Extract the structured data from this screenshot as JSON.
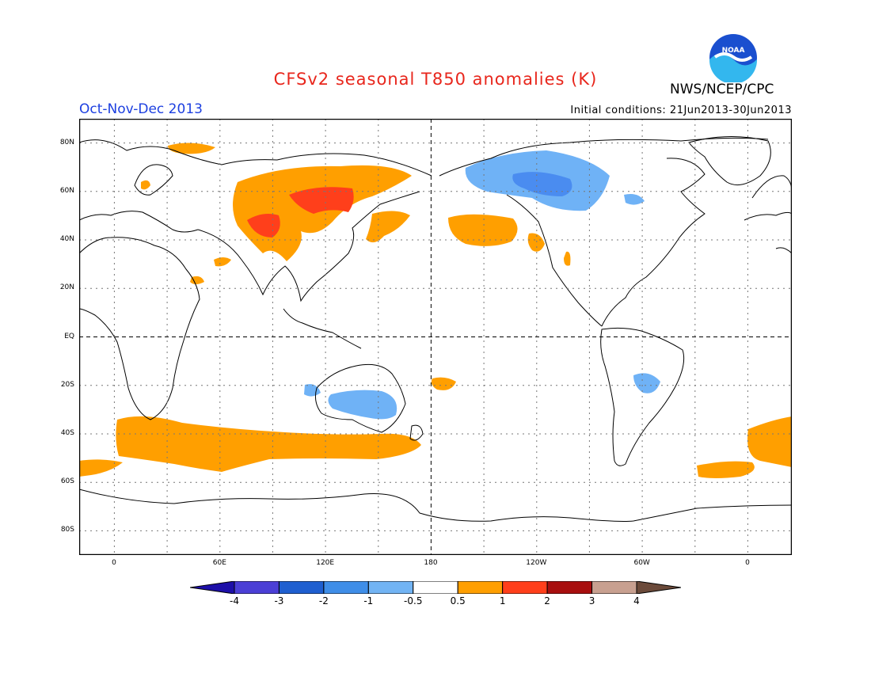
{
  "header": {
    "title": "CFSv2 seasonal T850 anomalies (K)",
    "agency": "NWS/NCEP/CPC",
    "logo_text": "NOAA",
    "period": "Oct-Nov-Dec 2013",
    "initial_conditions": "Initial conditions: 21Jun2013-30Jun2013"
  },
  "map": {
    "lat_labels": [
      "80N",
      "60N",
      "40N",
      "20N",
      "EQ",
      "20S",
      "40S",
      "60S",
      "80S"
    ],
    "lon_labels": [
      "0",
      "60E",
      "120E",
      "180",
      "120W",
      "60W",
      "0"
    ],
    "lat_values": [
      80,
      60,
      40,
      20,
      0,
      -20,
      -40,
      -60,
      -80
    ],
    "lon_values": [
      0,
      60,
      120,
      180,
      240,
      300,
      360
    ],
    "colors": {
      "warm_05_1": "#ff9f00",
      "warm_1_2": "#ff3f1b",
      "cool_05_1": "#6fb2f6",
      "cool_1_2": "#4a8cf0"
    }
  },
  "colorbar": {
    "labels": [
      "-4",
      "-3",
      "-2",
      "-1",
      "-0.5",
      "0.5",
      "1",
      "2",
      "3",
      "4"
    ],
    "colors": [
      "#1d0fa8",
      "#4b3fd6",
      "#1f5fd0",
      "#3f8ee8",
      "#72b4f4",
      "#ffffff",
      "#ff9f00",
      "#ff3f1b",
      "#a80f0f",
      "#c8a090",
      "#6b4a3a"
    ]
  }
}
